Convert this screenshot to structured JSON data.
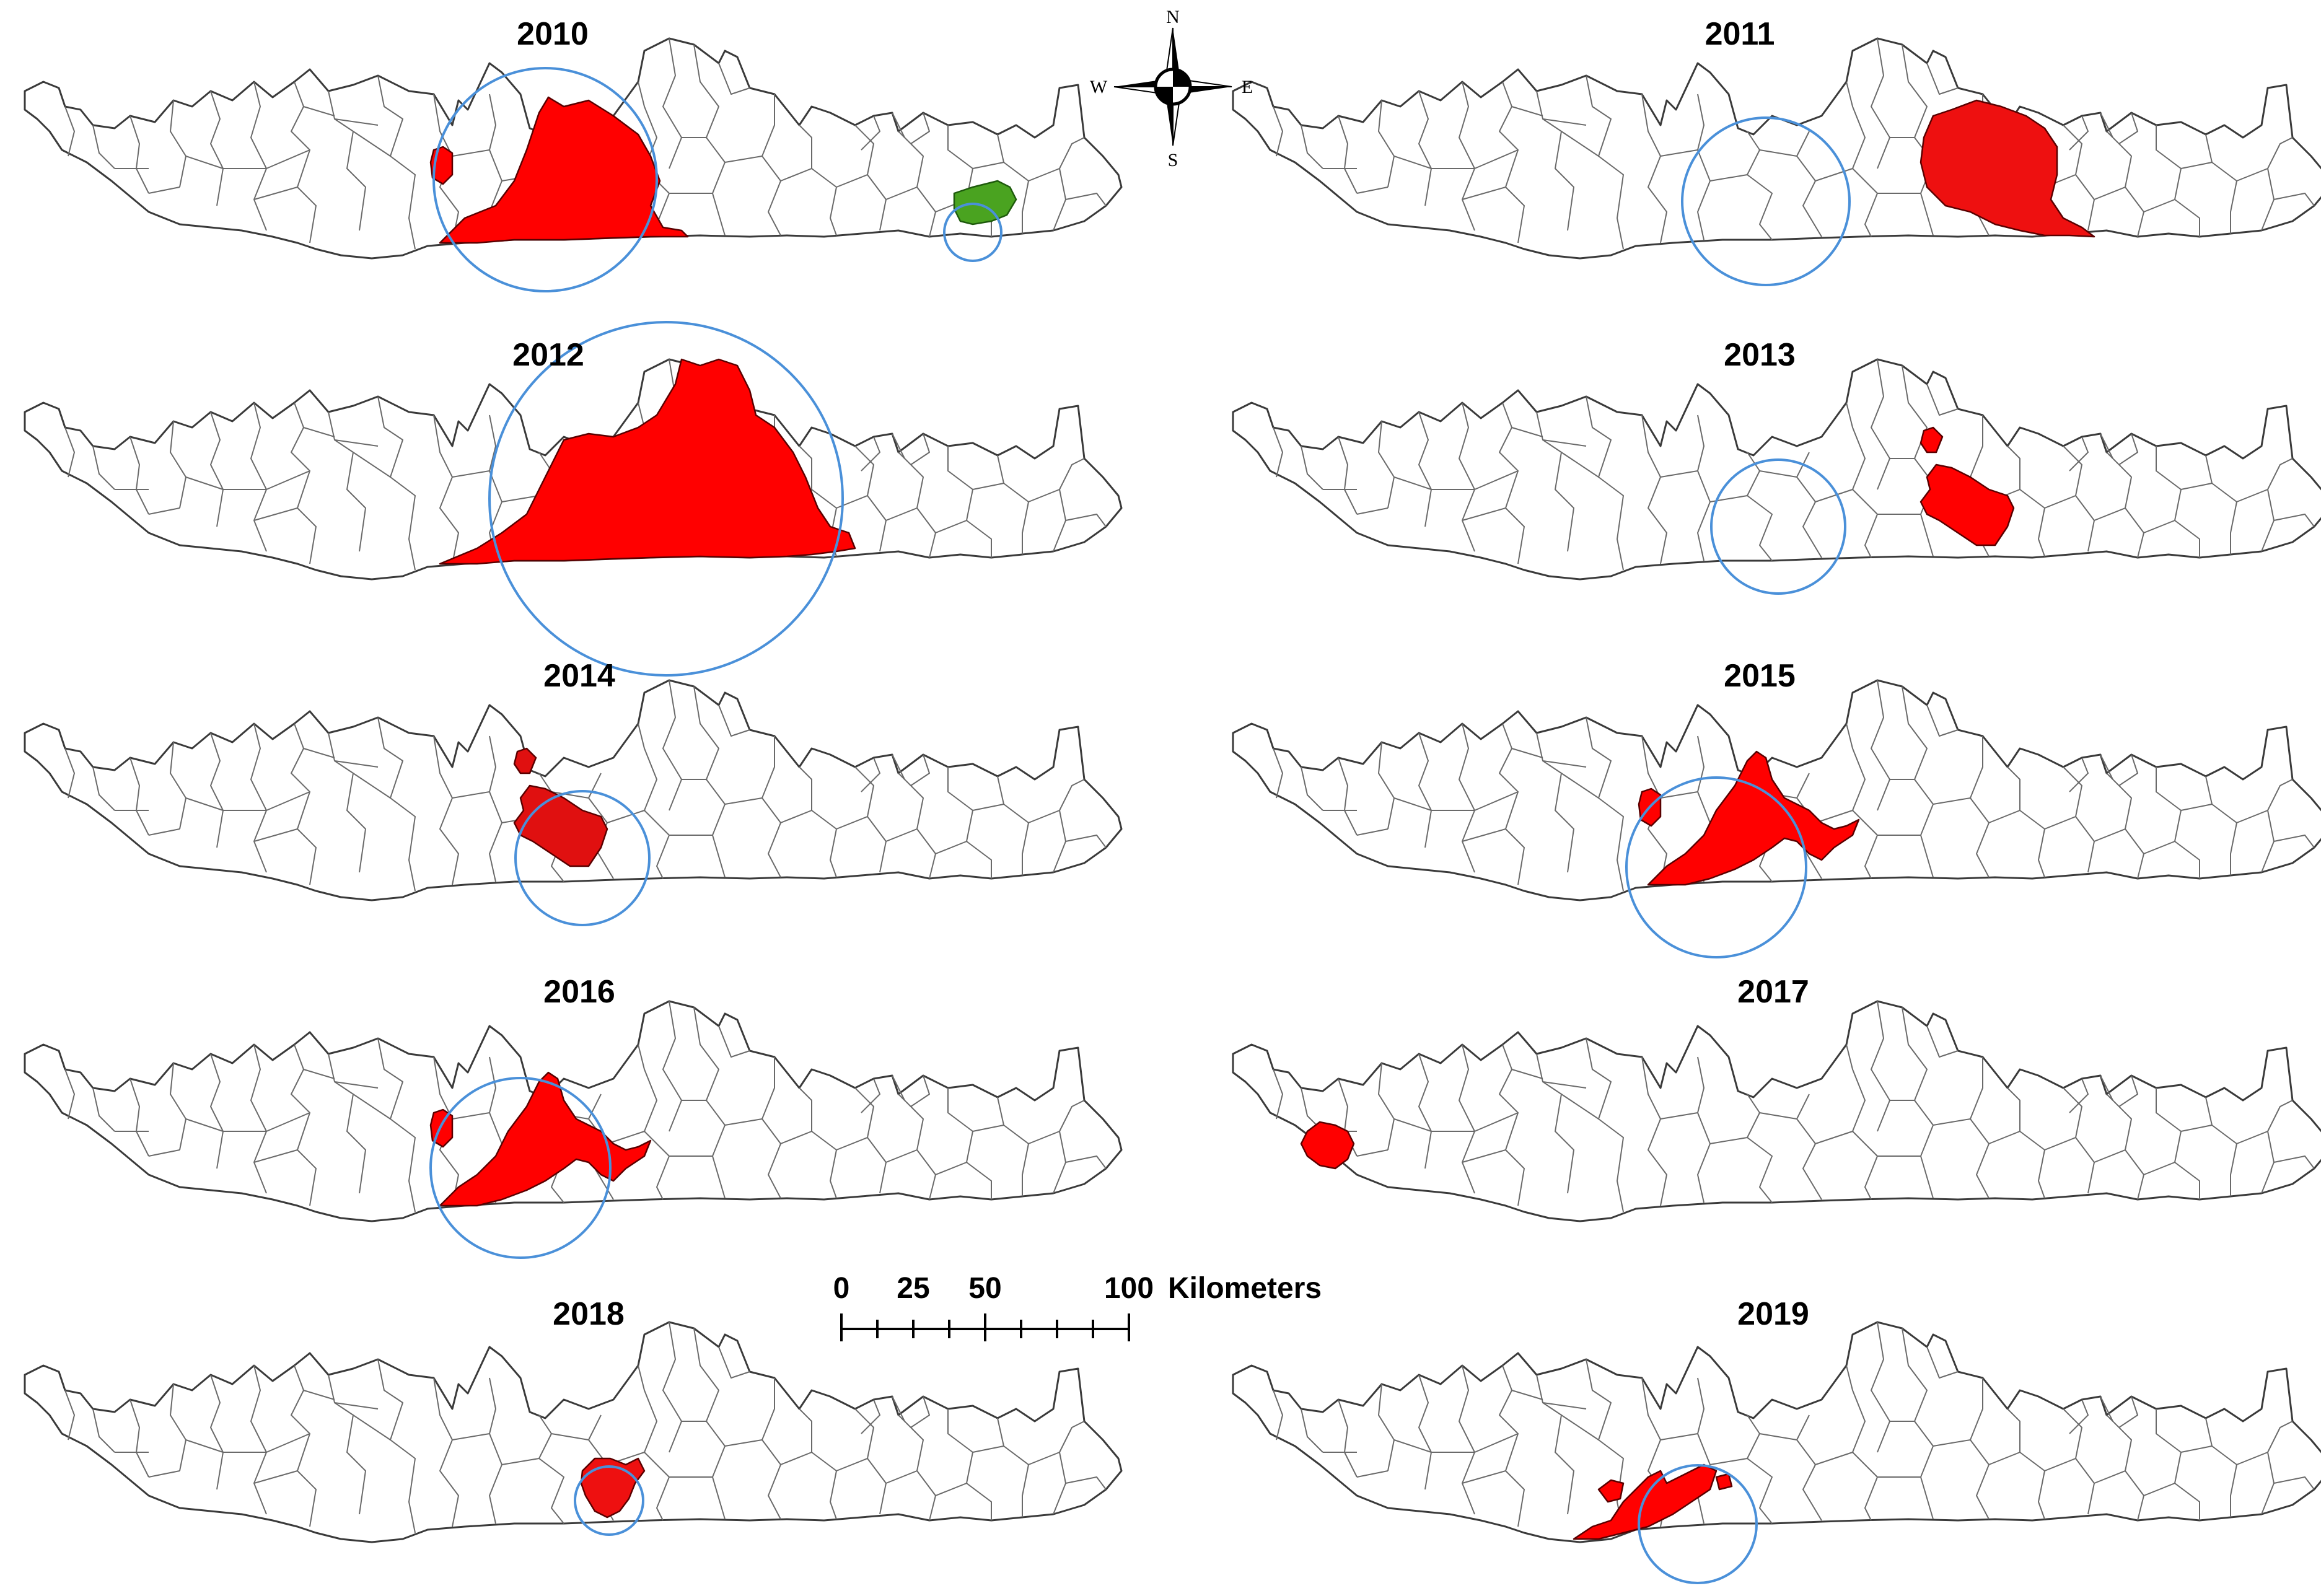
{
  "compass": {
    "n": "N",
    "s": "S",
    "e": "E",
    "w": "W"
  },
  "scale": {
    "ticks": [
      "0",
      "25",
      "50",
      "100"
    ],
    "unit": "Kilometers"
  },
  "colors": {
    "hotspot": "#ff0000",
    "coldspot": "#4aa320",
    "cluster_circle": "#4a90d9",
    "boundary": "#3a3a3a"
  },
  "panels": [
    {
      "year": "2010",
      "highlights": [
        "hotspot-central",
        "hotspot-small-west",
        "coldspot-east"
      ],
      "clusters": [
        "large-central",
        "small-east"
      ]
    },
    {
      "year": "2011",
      "highlights": [
        "hotspot-central-compact"
      ],
      "clusters": [
        "central"
      ]
    },
    {
      "year": "2012",
      "highlights": [
        "hotspot-central-wide"
      ],
      "clusters": [
        "very-large-central"
      ]
    },
    {
      "year": "2013",
      "highlights": [
        "hotspot-central-small"
      ],
      "clusters": [
        "central-small"
      ]
    },
    {
      "year": "2014",
      "highlights": [
        "hotspot-central-small"
      ],
      "clusters": [
        "central-small"
      ]
    },
    {
      "year": "2015",
      "highlights": [
        "hotspot-central-band",
        "hotspot-small-west"
      ],
      "clusters": [
        "central"
      ]
    },
    {
      "year": "2016",
      "highlights": [
        "hotspot-central-band",
        "hotspot-small-west"
      ],
      "clusters": [
        "central"
      ]
    },
    {
      "year": "2017",
      "highlights": [
        "hotspot-far-west"
      ],
      "clusters": []
    },
    {
      "year": "2018",
      "highlights": [
        "hotspot-tiny-central"
      ],
      "clusters": [
        "tiny-central"
      ]
    },
    {
      "year": "2019",
      "highlights": [
        "hotspot-south-central"
      ],
      "clusters": [
        "south-central"
      ]
    }
  ]
}
